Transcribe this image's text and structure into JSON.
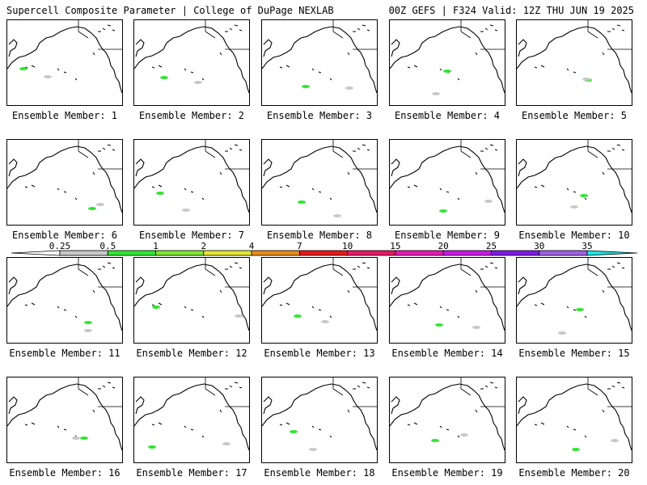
{
  "header": {
    "title_left": "Supercell Composite Parameter | College of DuPage NEXLAB",
    "title_right": "00Z GEFS | F324 Valid: 12Z THU JUN 19 2025"
  },
  "panel_caption_prefix": "Ensemble Member:",
  "members": [
    {
      "label": "Ensemble Member: 1",
      "number": 1
    },
    {
      "label": "Ensemble Member: 2",
      "number": 2
    },
    {
      "label": "Ensemble Member: 3",
      "number": 3
    },
    {
      "label": "Ensemble Member: 4",
      "number": 4
    },
    {
      "label": "Ensemble Member: 5",
      "number": 5
    },
    {
      "label": "Ensemble Member: 6",
      "number": 6
    },
    {
      "label": "Ensemble Member: 7",
      "number": 7
    },
    {
      "label": "Ensemble Member: 8",
      "number": 8
    },
    {
      "label": "Ensemble Member: 9",
      "number": 9
    },
    {
      "label": "Ensemble Member: 10",
      "number": 10
    },
    {
      "label": "Ensemble Member: 11",
      "number": 11
    },
    {
      "label": "Ensemble Member: 12",
      "number": 12
    },
    {
      "label": "Ensemble Member: 13",
      "number": 13
    },
    {
      "label": "Ensemble Member: 14",
      "number": 14
    },
    {
      "label": "Ensemble Member: 15",
      "number": 15
    },
    {
      "label": "Ensemble Member: 16",
      "number": 16
    },
    {
      "label": "Ensemble Member: 17",
      "number": 17
    },
    {
      "label": "Ensemble Member: 18",
      "number": 18
    },
    {
      "label": "Ensemble Member: 19",
      "number": 19
    },
    {
      "label": "Ensemble Member: 20",
      "number": 20
    }
  ],
  "colorbar": {
    "ticks": [
      "0.25",
      "0.5",
      "1",
      "2",
      "4",
      "7",
      "10",
      "15",
      "20",
      "25",
      "30",
      "35"
    ],
    "colors": [
      "#c8c8c8",
      "#32e632",
      "#7fe632",
      "#e6e632",
      "#e68c19",
      "#e61919",
      "#e61966",
      "#e619b4",
      "#c819e6",
      "#7f19e6",
      "#9f5fe6",
      "#19e6e6"
    ]
  }
}
